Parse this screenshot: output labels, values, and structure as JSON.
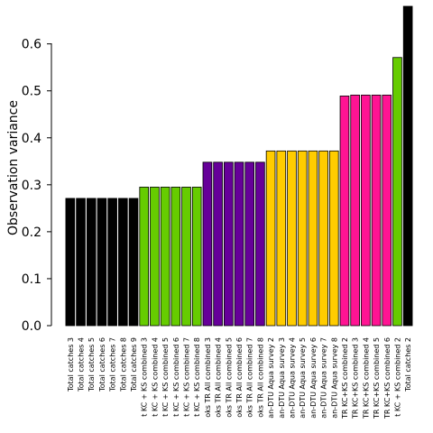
{
  "chart_data": {
    "type": "bar",
    "ylabel": "Observation variance",
    "xlabel": "",
    "ylim": [
      0,
      0.68
    ],
    "yticks": [
      "0.0",
      "0.1",
      "0.2",
      "0.3",
      "0.4",
      "0.5",
      "0.6"
    ],
    "grid": false,
    "categories": [
      "Total catches 3",
      "Total catches 4",
      "Total catches 5",
      "Total catches 6",
      "Total catches 7",
      "Total catches 8",
      "Total catches 9",
      "t KC + KS combined 3",
      "t KC + KS combined 4",
      "t KC + KS combined 5",
      "t KC + KS combined 6",
      "t KC + KS combined 7",
      "t KC + KS combined 8",
      "oks TR All combined 3",
      "oks TR All combined 4",
      "oks TR All combined 5",
      "oks TR All combined 6",
      "oks TR All combined 7",
      "oks TR All combined 8",
      "an-DTU Aqua survey 2",
      "an-DTU Aqua survey 3",
      "an-DTU Aqua survey 4",
      "an-DTU Aqua survey 5",
      "an-DTU Aqua survey 6",
      "an-DTU Aqua survey 7",
      "an-DTU Aqua survey 8",
      "TR KC+KS combined 2",
      "TR KC+KS combined 3",
      "TR KC+KS combined 4",
      "TR KC+KS combined 5",
      "TR KC+KS combined 6",
      "t KC + KS combined 2",
      "Total catches 2"
    ],
    "values": [
      0.271,
      0.271,
      0.271,
      0.271,
      0.271,
      0.271,
      0.271,
      0.295,
      0.295,
      0.295,
      0.295,
      0.295,
      0.295,
      0.348,
      0.348,
      0.348,
      0.348,
      0.348,
      0.348,
      0.372,
      0.372,
      0.372,
      0.372,
      0.372,
      0.372,
      0.372,
      0.489,
      0.491,
      0.491,
      0.491,
      0.491,
      0.571,
      0.68
    ],
    "colors": [
      "#000000",
      "#000000",
      "#000000",
      "#000000",
      "#000000",
      "#000000",
      "#000000",
      "#66cc00",
      "#66cc00",
      "#66cc00",
      "#66cc00",
      "#66cc00",
      "#66cc00",
      "#660099",
      "#660099",
      "#660099",
      "#660099",
      "#660099",
      "#660099",
      "#ffcc00",
      "#ffcc00",
      "#ffcc00",
      "#ffcc00",
      "#ffcc00",
      "#ffcc00",
      "#ffcc00",
      "#ff1493",
      "#ff1493",
      "#ff1493",
      "#ff1493",
      "#ff1493",
      "#66cc00",
      "#000000"
    ]
  }
}
